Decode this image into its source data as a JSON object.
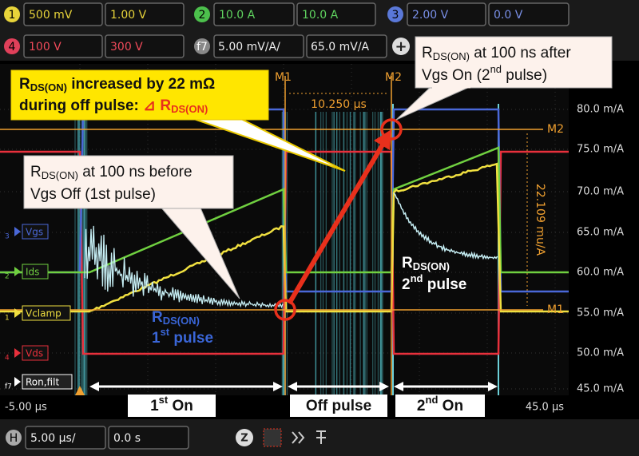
{
  "channel_bar": {
    "ch1": {
      "badge": "1",
      "scale": "500 mV",
      "offset": "1.00 V"
    },
    "ch2": {
      "badge": "2",
      "scale": "10.0 A",
      "offset": "10.0 A"
    },
    "ch3": {
      "badge": "3",
      "scale": "2.00 V",
      "offset": "0.0 V"
    },
    "ch4": {
      "badge": "4",
      "scale": "100 V",
      "offset": "300 V"
    },
    "f7": {
      "badge": "f7",
      "scale": "5.00 mV/A/",
      "offset": "65.0 mV/A"
    },
    "add": "+"
  },
  "right_axis": [
    "m/A",
    "80.0 m/A",
    "75.0 m/A",
    "70.0 m/A",
    "65.0 m/A",
    "60.0 m/A",
    "55.0 m/A",
    "50.0 m/A",
    "45.0 m/A"
  ],
  "cursors": {
    "m1": "M1",
    "m2": "M2",
    "dt": "10.250 µs",
    "dy": "22.109 mu/A"
  },
  "channel_labels": [
    {
      "num": "3",
      "name": "Vgs"
    },
    {
      "num": "2",
      "name": "Ids"
    },
    {
      "num": "1",
      "name": "Vclamp"
    },
    {
      "num": "4",
      "name": "Vds"
    },
    {
      "num": "f7",
      "name": "Ron,filt"
    }
  ],
  "time_axis": {
    "start": "-5.00 µs",
    "end": "45.0 µs"
  },
  "annotations": {
    "increase": {
      "line1": [
        "R",
        "DS(ON)",
        " increased by 22 mΩ"
      ],
      "line2": [
        "during off pulse: ",
        "⊿ R",
        "DS(ON)"
      ]
    },
    "before": {
      "line1": [
        "R",
        "DS(ON)",
        " at 100 ns before"
      ],
      "line2": "Vgs Off (1st pulse)"
    },
    "after": {
      "line1": [
        "R",
        "DS(ON)",
        " at 100 ns after"
      ],
      "line2": [
        "Vgs On (",
        "2",
        "nd",
        " pulse)"
      ]
    },
    "pulse1": {
      "line1": [
        "R",
        "DS(ON)"
      ],
      "line2": [
        "1",
        "st",
        " pulse"
      ]
    },
    "pulse2": {
      "line1": [
        "R",
        "DS(ON)"
      ],
      "line2": [
        "2",
        "nd",
        " pulse"
      ]
    }
  },
  "sections": {
    "first_on": [
      "1",
      "st",
      " On"
    ],
    "off_pulse": "Off pulse",
    "second_on": [
      "2",
      "nd",
      " On"
    ]
  },
  "bottom_bar": {
    "badge": "H",
    "scale": "5.00 µs/",
    "delay": "0.0 s",
    "zoom": "Z"
  }
}
